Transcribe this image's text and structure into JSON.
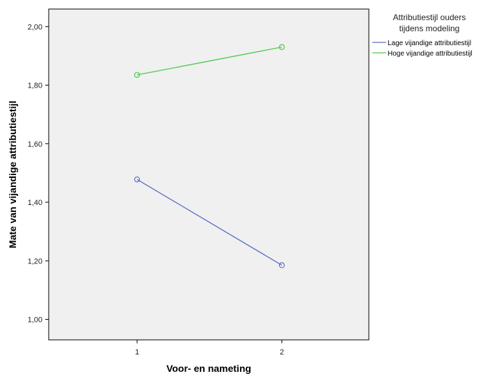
{
  "chart_data": {
    "type": "line",
    "x": [
      1,
      2
    ],
    "xticks": [
      "1",
      "2"
    ],
    "yticks": [
      "1,00",
      "1,20",
      "1,40",
      "1,60",
      "1,80",
      "2,00"
    ],
    "ylim": [
      0.93,
      2.06
    ],
    "xlabel": "Voor- en nameting",
    "ylabel": "Mate van vijandige attributiestijl",
    "grid": false,
    "legend": {
      "placement": "right",
      "title_lines": [
        "Attributiestijl ouders",
        "tijdens modeling"
      ]
    },
    "series": [
      {
        "name": "Lage vijandige attributiestijl",
        "values": [
          1.478,
          1.185
        ],
        "color": "#5b6fc7"
      },
      {
        "name": "Hoge vijandige attributiestijl",
        "values": [
          1.835,
          1.93
        ],
        "color": "#4dc94d"
      }
    ]
  }
}
